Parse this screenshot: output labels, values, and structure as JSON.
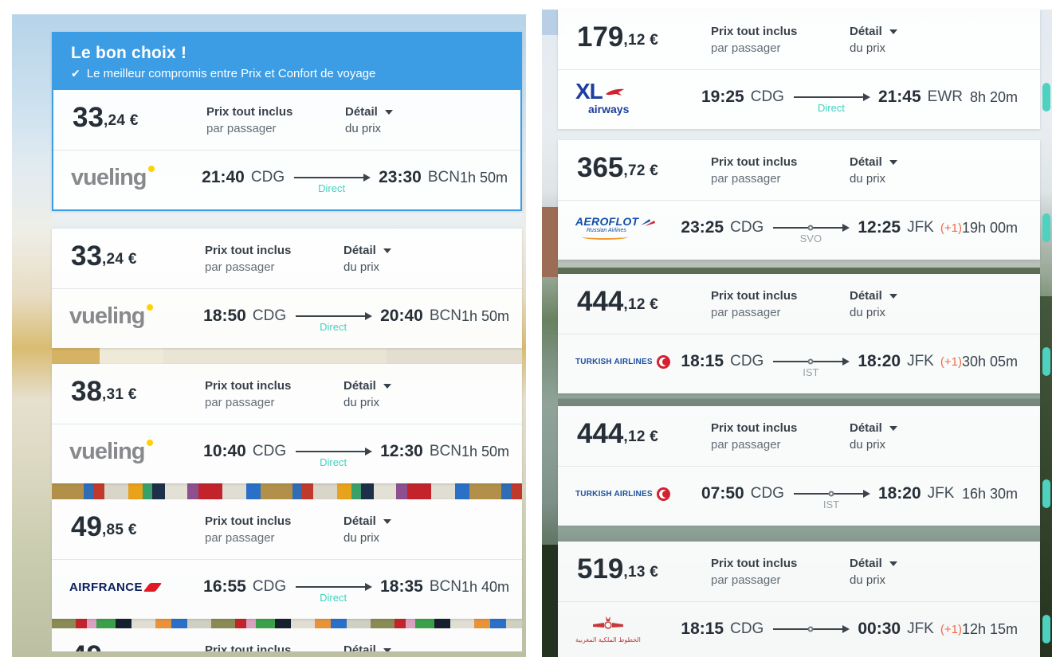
{
  "banner": {
    "title": "Le bon choix !",
    "check_icon": "✔",
    "subtitle": "Le meilleur compromis entre Prix et Confort de voyage"
  },
  "labels": {
    "price_included": "Prix tout inclus",
    "per_passenger": "par passager",
    "detail": "Détail",
    "of_price": "du prix"
  },
  "colors": {
    "banner_blue": "#3d9de4",
    "direct_teal": "#43d1c0",
    "stop_gray": "#99a2aa",
    "plus_one_orange": "#ee6a47",
    "select_tab_teal": "#4ed1bf",
    "price_text": "#262e37"
  },
  "left_results": [
    {
      "price_int": "33",
      "price_dec": ",24 €",
      "logo": {
        "type": "vueling",
        "text": "vueling"
      },
      "dep_time": "21:40",
      "dep_code": "CDG",
      "arr_time": "23:30",
      "arr_code": "BCN",
      "route_label": "Direct",
      "route_type": "direct",
      "has_stop": false,
      "duration": "1h 50m",
      "highlight": true
    },
    {
      "price_int": "33",
      "price_dec": ",24 €",
      "logo": {
        "type": "vueling",
        "text": "vueling"
      },
      "dep_time": "18:50",
      "dep_code": "CDG",
      "arr_time": "20:40",
      "arr_code": "BCN",
      "route_label": "Direct",
      "route_type": "direct",
      "has_stop": false,
      "duration": "1h 50m"
    },
    {
      "price_int": "38",
      "price_dec": ",31 €",
      "logo": {
        "type": "vueling",
        "text": "vueling"
      },
      "dep_time": "10:40",
      "dep_code": "CDG",
      "arr_time": "12:30",
      "arr_code": "BCN",
      "route_label": "Direct",
      "route_type": "direct",
      "has_stop": false,
      "duration": "1h 50m"
    },
    {
      "price_int": "49",
      "price_dec": ",85 €",
      "logo": {
        "type": "airfrance",
        "text": "AIRFRANCE"
      },
      "dep_time": "16:55",
      "dep_code": "CDG",
      "arr_time": "18:35",
      "arr_code": "BCN",
      "route_label": "Direct",
      "route_type": "direct",
      "has_stop": false,
      "duration": "1h 40m"
    },
    {
      "price_int": "49",
      "partial": true
    }
  ],
  "right_results": [
    {
      "price_int": "179",
      "price_dec": ",12 €",
      "logo": {
        "type": "xl",
        "text": "XL",
        "subtext": "airways"
      },
      "dep_time": "19:25",
      "dep_code": "CDG",
      "arr_time": "21:45",
      "arr_code": "EWR",
      "route_label": "Direct",
      "route_type": "direct",
      "has_stop": false,
      "duration": "8h 20m",
      "select_tab": true
    },
    {
      "price_int": "365",
      "price_dec": ",72 €",
      "logo": {
        "type": "aeroflot",
        "text": "AEROFLOT",
        "subtext": "Russian Airlines"
      },
      "dep_time": "23:25",
      "dep_code": "CDG",
      "arr_time": "12:25",
      "arr_code": "JFK",
      "plus_one": "(+1)",
      "route_label": "SVO",
      "route_type": "stop",
      "has_stop": true,
      "duration": "19h 00m",
      "select_tab": true
    },
    {
      "price_int": "444",
      "price_dec": ",12 €",
      "logo": {
        "type": "turkish",
        "text": "TURKISH AIRLINES"
      },
      "dep_time": "18:15",
      "dep_code": "CDG",
      "arr_time": "18:20",
      "arr_code": "JFK",
      "plus_one": "(+1)",
      "route_label": "IST",
      "route_type": "stop",
      "has_stop": true,
      "duration": "30h 05m",
      "select_tab": true
    },
    {
      "price_int": "444",
      "price_dec": ",12 €",
      "logo": {
        "type": "turkish",
        "text": "TURKISH AIRLINES"
      },
      "dep_time": "07:50",
      "dep_code": "CDG",
      "arr_time": "18:20",
      "arr_code": "JFK",
      "route_label": "IST",
      "route_type": "stop",
      "has_stop": true,
      "duration": "16h 30m",
      "select_tab": true
    },
    {
      "price_int": "519",
      "price_dec": ",13 €",
      "logo": {
        "type": "ram",
        "text": "الخطوط الملكية المغربية"
      },
      "dep_time": "18:15",
      "dep_code": "CDG",
      "arr_time": "00:30",
      "arr_code": "JFK",
      "plus_one": "(+1)",
      "has_stop": true,
      "duration": "12h 15m",
      "select_tab": true
    }
  ]
}
